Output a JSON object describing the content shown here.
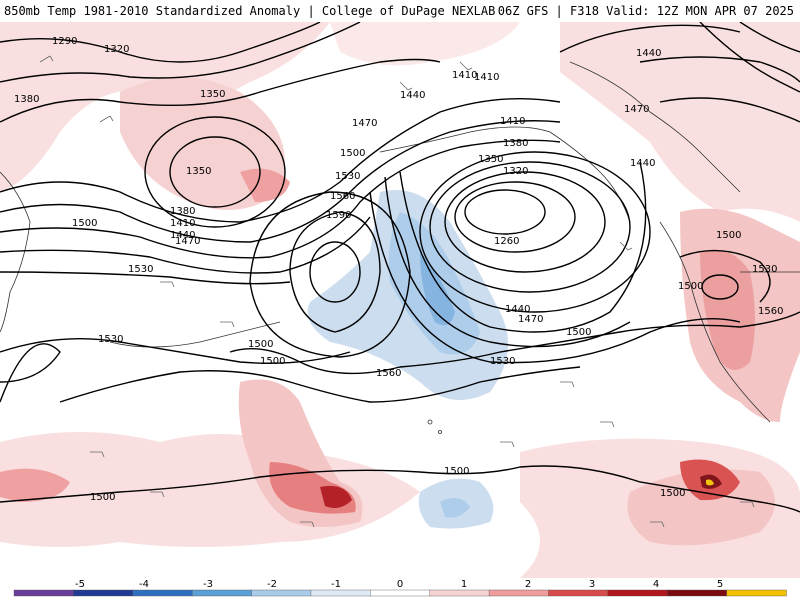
{
  "header": {
    "product": "850mb Temp 1981-2010 Standardized Anomaly",
    "source": "College of DuPage NEXLAB",
    "run": "06Z GFS",
    "forecast": "F318",
    "valid": "Valid: 12Z MON APR 07 2025"
  },
  "colorbar": {
    "ticks": [
      "-5",
      "-4",
      "-3",
      "-2",
      "-1",
      "0",
      "1",
      "2",
      "3",
      "4",
      "5"
    ],
    "colors": [
      "#6a3d9a",
      "#1f3a93",
      "#2f6fbf",
      "#5a9fd6",
      "#a9cbe9",
      "#dde9f5",
      "#ffffff",
      "#f7d3d3",
      "#ef9c9c",
      "#d94a4a",
      "#b0161c",
      "#7a0a10",
      "#f2c200"
    ]
  },
  "contour_labels": [
    "1290",
    "1320",
    "1380",
    "1350",
    "1410",
    "1440",
    "1470",
    "1500",
    "1530",
    "1560",
    "1590",
    "1350",
    "1380",
    "1410",
    "1440",
    "1470",
    "1260",
    "1320",
    "1350",
    "1380",
    "1410",
    "1440",
    "1470",
    "1500",
    "1530",
    "1560",
    "1500",
    "1500",
    "1500",
    "1530",
    "1440",
    "1470",
    "1440",
    "1410",
    "1500",
    "1500",
    "1530",
    "1560",
    "1500",
    "1500",
    "1500"
  ]
}
